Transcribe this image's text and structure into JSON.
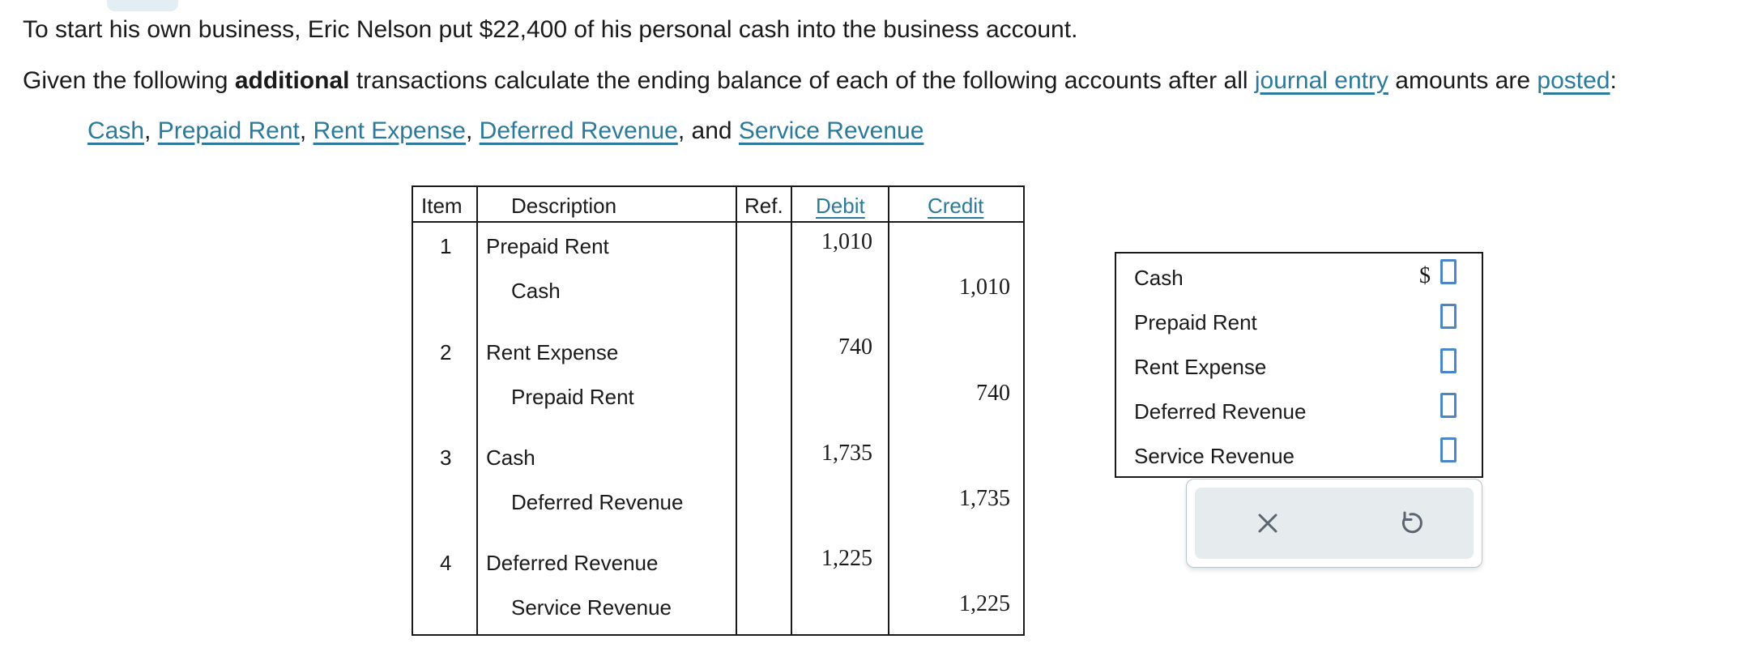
{
  "intro": {
    "text": "To start his own business, Eric Nelson put $22,400 of his personal cash into the business account."
  },
  "prompt": {
    "part1": "Given the following ",
    "bold": "additional",
    "part2": " transactions calculate the ending balance of each of the following accounts after all ",
    "link1": "journal entry",
    "part3": " amounts are ",
    "link2": "posted",
    "part4": ":"
  },
  "accounts_links": {
    "cash": "Cash",
    "prepaid_rent": "Prepaid Rent",
    "rent_expense": "Rent Expense",
    "deferred_revenue": "Deferred Revenue",
    "and": "and",
    "service_revenue": "Service Revenue",
    "comma": ","
  },
  "journal": {
    "headers": {
      "item": "Item",
      "description": "Description",
      "ref": "Ref.",
      "debit": "Debit",
      "credit": "Credit"
    },
    "entries": [
      {
        "item": "1",
        "debit_account": "Prepaid Rent",
        "credit_account": "Cash",
        "debit": "1,010",
        "credit": "1,010"
      },
      {
        "item": "2",
        "debit_account": "Rent Expense",
        "credit_account": "Prepaid Rent",
        "debit": "740",
        "credit": "740"
      },
      {
        "item": "3",
        "debit_account": "Cash",
        "credit_account": "Deferred Revenue",
        "debit": "1,735",
        "credit": "1,735"
      },
      {
        "item": "4",
        "debit_account": "Deferred Revenue",
        "credit_account": "Service Revenue",
        "debit": "1,225",
        "credit": "1,225"
      }
    ]
  },
  "answer": {
    "currency": "$",
    "rows": [
      {
        "label": "Cash",
        "value": ""
      },
      {
        "label": "Prepaid Rent",
        "value": ""
      },
      {
        "label": "Rent Expense",
        "value": ""
      },
      {
        "label": "Deferred Revenue",
        "value": ""
      },
      {
        "label": "Service Revenue",
        "value": ""
      }
    ]
  },
  "controls": {
    "clear_icon": "close-icon",
    "reset_icon": "undo-icon"
  },
  "colors": {
    "link": "#2b7a9b",
    "input_border": "#4a86c8",
    "control_bg": "#e6ebee"
  }
}
